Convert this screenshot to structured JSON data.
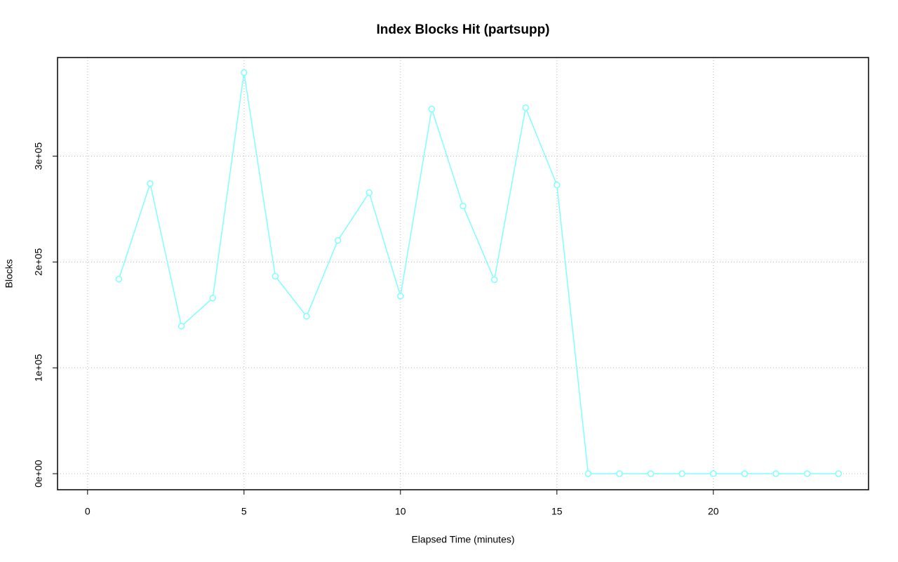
{
  "chart_data": {
    "type": "line",
    "title": "Index Blocks Hit (partsupp)",
    "x_label": "Elapsed Time (minutes)",
    "y_label": "Blocks",
    "x": [
      1,
      2,
      3,
      4,
      5,
      6,
      7,
      8,
      9,
      10,
      11,
      12,
      13,
      14,
      15,
      16,
      17,
      18,
      19,
      20,
      21,
      22,
      23,
      24
    ],
    "series": [
      {
        "color": "#80ffff",
        "values": [
          183800,
          274100,
          139400,
          165900,
          379000,
          186500,
          148700,
          220400,
          265500,
          167900,
          344500,
          252900,
          183200,
          345800,
          272800,
          0,
          0,
          0,
          0,
          0,
          0,
          0,
          0,
          0
        ]
      }
    ],
    "xlim": [
      -0.96,
      24.96
    ],
    "ylim": [
      -15160,
      393160
    ],
    "xticks": [
      0,
      5,
      10,
      15,
      20
    ],
    "yticks": [
      {
        "value": 0,
        "label": "0e+00"
      },
      {
        "value": 100000,
        "label": "1e+05"
      },
      {
        "value": 200000,
        "label": "2e+05"
      },
      {
        "value": 300000,
        "label": "3e+05"
      }
    ],
    "grid": true
  }
}
